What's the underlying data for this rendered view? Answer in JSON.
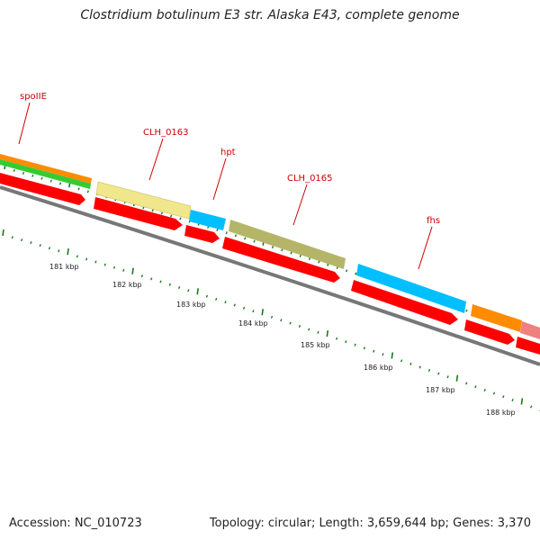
{
  "title": "Clostridium botulinum E3 str. Alaska E43, complete genome",
  "accession": "Accession: NC_010723",
  "topology": "Topology: circular; Length: 3,659,644 bp; Genes: 3,370",
  "colors": {
    "label": "#cc0000",
    "cds_strand": "#ff0000",
    "backbone": "#777777",
    "tick": "#1a7a1a",
    "orange": "#ff8c00",
    "green": "#33cc33",
    "yellow": "#f0e68c",
    "blue": "#00bfff",
    "olive": "#b5b56a",
    "pink": "#f08080"
  },
  "gene_labels": [
    {
      "id": "spoIIE",
      "text": "spoIIE"
    },
    {
      "id": "CLH_0163",
      "text": "CLH_0163"
    },
    {
      "id": "hpt",
      "text": "hpt"
    },
    {
      "id": "CLH_0165",
      "text": "CLH_0165"
    },
    {
      "id": "fhs",
      "text": "fhs"
    }
  ],
  "scale_labels": [
    {
      "kbp": 181,
      "text": "181 kbp"
    },
    {
      "kbp": 182,
      "text": "182 kbp"
    },
    {
      "kbp": 183,
      "text": "183 kbp"
    },
    {
      "kbp": 184,
      "text": "184 kbp"
    },
    {
      "kbp": 185,
      "text": "185 kbp"
    },
    {
      "kbp": 186,
      "text": "186 kbp"
    },
    {
      "kbp": 187,
      "text": "187 kbp"
    },
    {
      "kbp": 188,
      "text": "188 kbp"
    }
  ]
}
